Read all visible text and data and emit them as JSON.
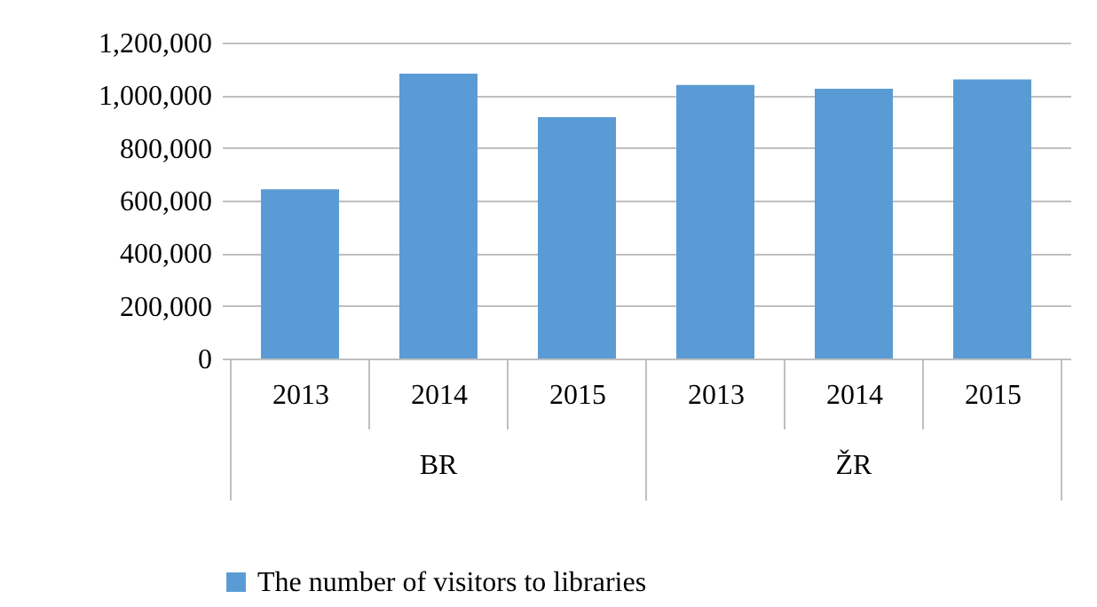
{
  "chart_data": {
    "type": "bar",
    "categories": [
      "2013",
      "2014",
      "2015",
      "2013",
      "2014",
      "2015"
    ],
    "series": [
      {
        "name": "The number of visitors to libraries",
        "color": "#5b9bd5",
        "values": [
          643000,
          1082000,
          917000,
          1039000,
          1025000,
          1060000
        ]
      }
    ],
    "ylim": [
      0,
      1200000
    ],
    "yticks": [
      {
        "value": 0,
        "label": "0"
      },
      {
        "value": 200000,
        "label": "200,000"
      },
      {
        "value": 400000,
        "label": "400,000"
      },
      {
        "value": 600000,
        "label": "600,000"
      },
      {
        "value": 800000,
        "label": "800,000"
      },
      {
        "value": 1000000,
        "label": "1,000,000"
      },
      {
        "value": 1200000,
        "label": "1,200,000"
      }
    ],
    "annotations": [
      "BR",
      "ŽR"
    ],
    "grid": "y",
    "legend": "bottom"
  }
}
